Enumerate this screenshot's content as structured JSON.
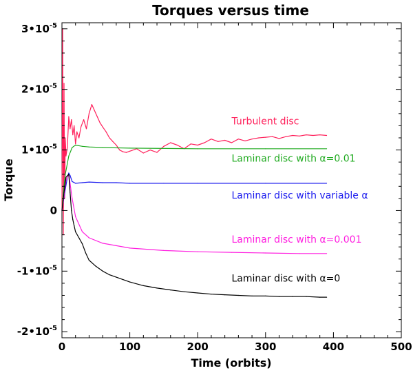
{
  "chart_data": {
    "type": "line",
    "title": "Torques versus time",
    "xlabel": "Time (orbits)",
    "ylabel": "Torque",
    "xlim": [
      0,
      500
    ],
    "ylim": [
      -2.1e-05,
      3.1e-05
    ],
    "xticks": [
      {
        "value": 0,
        "label": "0"
      },
      {
        "value": 100,
        "label": "100"
      },
      {
        "value": 200,
        "label": "200"
      },
      {
        "value": 300,
        "label": "300"
      },
      {
        "value": 400,
        "label": "400"
      },
      {
        "value": 500,
        "label": "500"
      }
    ],
    "yticks": [
      {
        "value": 3e-05,
        "mant": "3•10",
        "exp": "-5"
      },
      {
        "value": 2e-05,
        "mant": "2•10",
        "exp": "-5"
      },
      {
        "value": 1e-05,
        "mant": "1•10",
        "exp": "-5"
      },
      {
        "value": 0,
        "mant": "0",
        "exp": ""
      },
      {
        "value": -1e-05,
        "mant": "-1•10",
        "exp": "-5"
      },
      {
        "value": -2e-05,
        "mant": "-2•10",
        "exp": "-5"
      }
    ],
    "grid": false,
    "series": [
      {
        "name": "Turbulent disc",
        "color": "#ff1f5a",
        "label_at": [
          250,
          1.42e-05
        ],
        "x": [
          0,
          1,
          2,
          3,
          4,
          5,
          6,
          8,
          10,
          12,
          14,
          16,
          18,
          20,
          22,
          25,
          28,
          32,
          36,
          40,
          44,
          48,
          52,
          56,
          60,
          65,
          70,
          75,
          80,
          85,
          90,
          95,
          100,
          110,
          120,
          130,
          140,
          150,
          160,
          170,
          180,
          190,
          200,
          210,
          220,
          230,
          240,
          250,
          260,
          270,
          280,
          290,
          300,
          310,
          320,
          330,
          340,
          350,
          360,
          370,
          380,
          390
        ],
        "y": [
          0,
          3e-05,
          -4e-06,
          2.1e-05,
          2e-06,
          1.2e-05,
          9e-06,
          1.05e-05,
          1.55e-05,
          1.35e-05,
          1.5e-05,
          1.25e-05,
          1.4e-05,
          1.1e-05,
          1.3e-05,
          1.2e-05,
          1.38e-05,
          1.5e-05,
          1.35e-05,
          1.6e-05,
          1.75e-05,
          1.65e-05,
          1.55e-05,
          1.45e-05,
          1.38e-05,
          1.3e-05,
          1.2e-05,
          1.14e-05,
          1.08e-05,
          1e-05,
          9.7e-06,
          9.6e-06,
          9.8e-06,
          1.02e-05,
          9.5e-06,
          1e-05,
          9.6e-06,
          1.06e-05,
          1.12e-05,
          1.08e-05,
          1.02e-05,
          1.1e-05,
          1.08e-05,
          1.12e-05,
          1.18e-05,
          1.14e-05,
          1.16e-05,
          1.12e-05,
          1.18e-05,
          1.15e-05,
          1.18e-05,
          1.2e-05,
          1.21e-05,
          1.22e-05,
          1.19e-05,
          1.22e-05,
          1.24e-05,
          1.23e-05,
          1.25e-05,
          1.24e-05,
          1.25e-05,
          1.24e-05
        ]
      },
      {
        "name": "Laminar disc with α=0.01",
        "color": "#1faa1f",
        "label_at": [
          250,
          8.1e-06
        ],
        "x": [
          0,
          2,
          5,
          10,
          15,
          20,
          25,
          30,
          40,
          60,
          100,
          200,
          300,
          390
        ],
        "y": [
          0,
          3e-06,
          6e-06,
          9e-06,
          1.04e-05,
          1.08e-05,
          1.07e-05,
          1.06e-05,
          1.05e-05,
          1.04e-05,
          1.03e-05,
          1.02e-05,
          1.02e-05,
          1.02e-05
        ]
      },
      {
        "name": "Laminar disc with variable α",
        "color": "#1a1aee",
        "label_at": [
          250,
          2e-06
        ],
        "x": [
          0,
          2,
          5,
          8,
          10,
          12,
          15,
          20,
          30,
          40,
          60,
          80,
          100,
          150,
          200,
          300,
          390
        ],
        "y": [
          0,
          1.5e-06,
          3.5e-06,
          5.5e-06,
          6.2e-06,
          5.8e-06,
          4.8e-06,
          4.5e-06,
          4.6e-06,
          4.7e-06,
          4.6e-06,
          4.6e-06,
          4.5e-06,
          4.5e-06,
          4.5e-06,
          4.5e-06,
          4.5e-06
        ]
      },
      {
        "name": "Laminar disc with α=0.001",
        "color": "#ff1fe0",
        "label_at": [
          250,
          -5.3e-06
        ],
        "x": [
          0,
          3,
          6,
          10,
          12,
          15,
          20,
          30,
          40,
          60,
          80,
          100,
          150,
          200,
          250,
          300,
          350,
          390
        ],
        "y": [
          0,
          2.5e-06,
          5e-06,
          6e-06,
          4.5e-06,
          2e-06,
          -1e-06,
          -3.5e-06,
          -4.5e-06,
          -5.4e-06,
          -5.8e-06,
          -6.2e-06,
          -6.6e-06,
          -6.8e-06,
          -6.9e-06,
          -7e-06,
          -7.1e-06,
          -7.1e-06
        ]
      },
      {
        "name": "Laminar disc with α=0",
        "color": "#000000",
        "label_at": [
          250,
          -1.17e-05
        ],
        "x": [
          0,
          3,
          6,
          10,
          12,
          14,
          16,
          18,
          20,
          25,
          30,
          35,
          40,
          50,
          60,
          70,
          80,
          90,
          100,
          120,
          140,
          160,
          180,
          200,
          220,
          240,
          260,
          280,
          300,
          320,
          340,
          360,
          380,
          390
        ],
        "y": [
          0,
          3e-06,
          5.5e-06,
          6e-06,
          3e-06,
          0.0,
          -1.5e-06,
          -2.5e-06,
          -3.5e-06,
          -4.5e-06,
          -5.5e-06,
          -7e-06,
          -8.2e-06,
          -9.2e-06,
          -1e-05,
          -1.06e-05,
          -1.1e-05,
          -1.14e-05,
          -1.18e-05,
          -1.24e-05,
          -1.28e-05,
          -1.31e-05,
          -1.34e-05,
          -1.36e-05,
          -1.38e-05,
          -1.39e-05,
          -1.4e-05,
          -1.41e-05,
          -1.41e-05,
          -1.42e-05,
          -1.42e-05,
          -1.42e-05,
          -1.43e-05,
          -1.43e-05
        ]
      }
    ]
  }
}
